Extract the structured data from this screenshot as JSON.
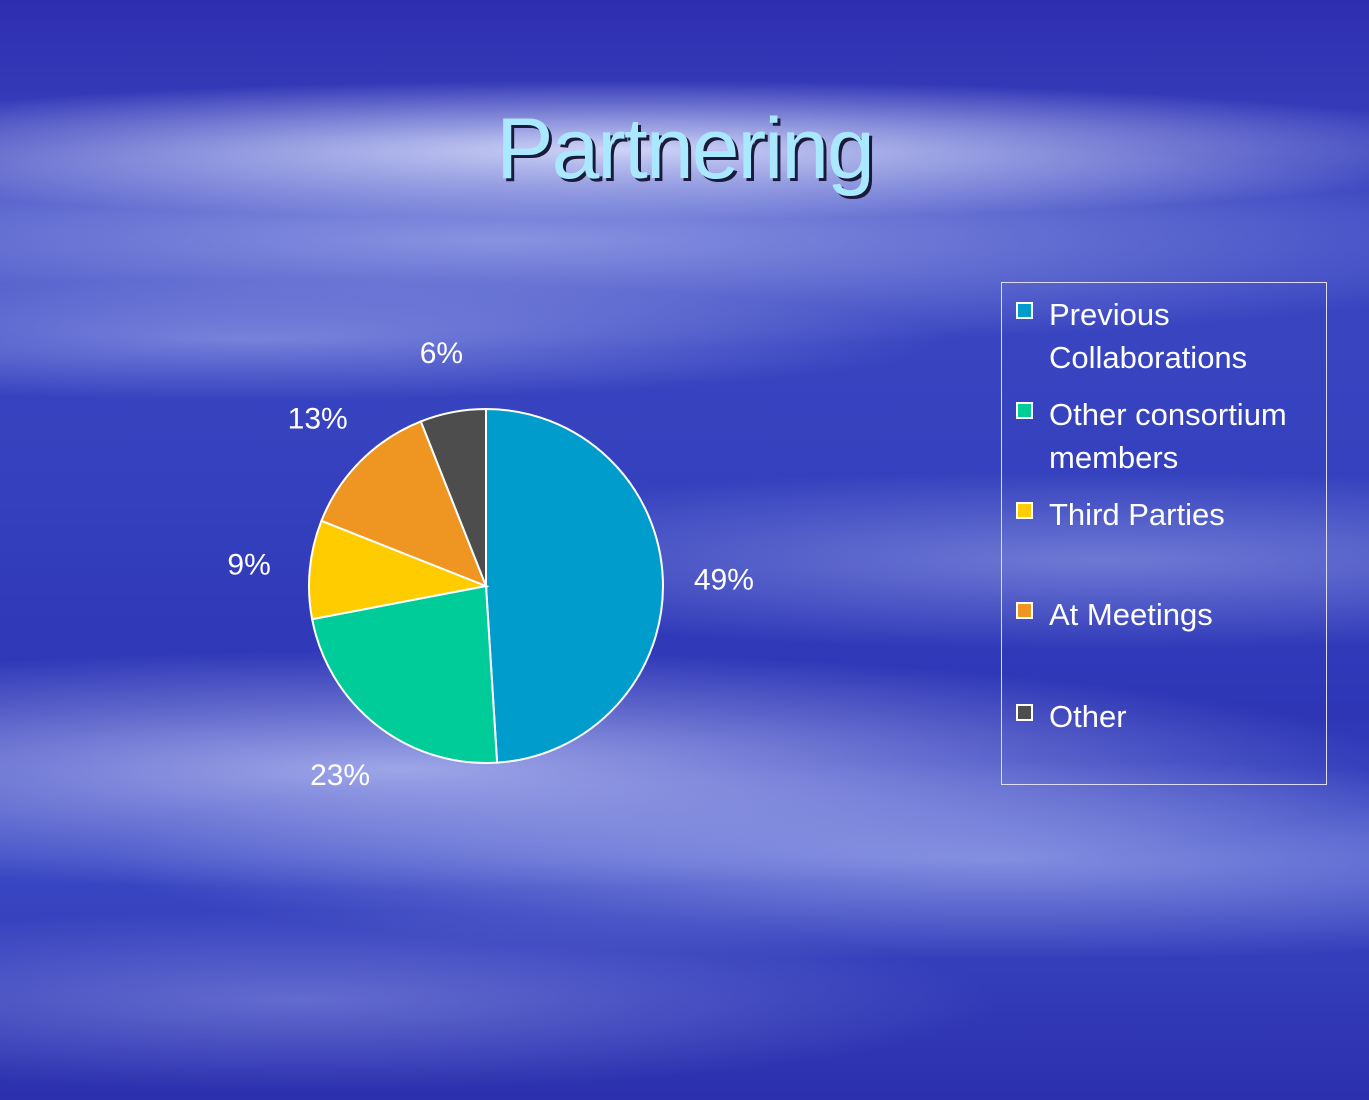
{
  "slide": {
    "title": "Partnering"
  },
  "chart_data": {
    "type": "pie",
    "categories": [
      "Previous Collaborations",
      "Other consortium members",
      "Third Parties",
      "At Meetings",
      "Other"
    ],
    "values": [
      49,
      23,
      9,
      13,
      6
    ],
    "labels": [
      "49%",
      "23%",
      "9%",
      "13%",
      "6%"
    ],
    "colors": [
      "#009ccc",
      "#00cc99",
      "#ffcc00",
      "#ee9522",
      "#4d4d4d"
    ],
    "unit": "%",
    "legend": "right"
  }
}
